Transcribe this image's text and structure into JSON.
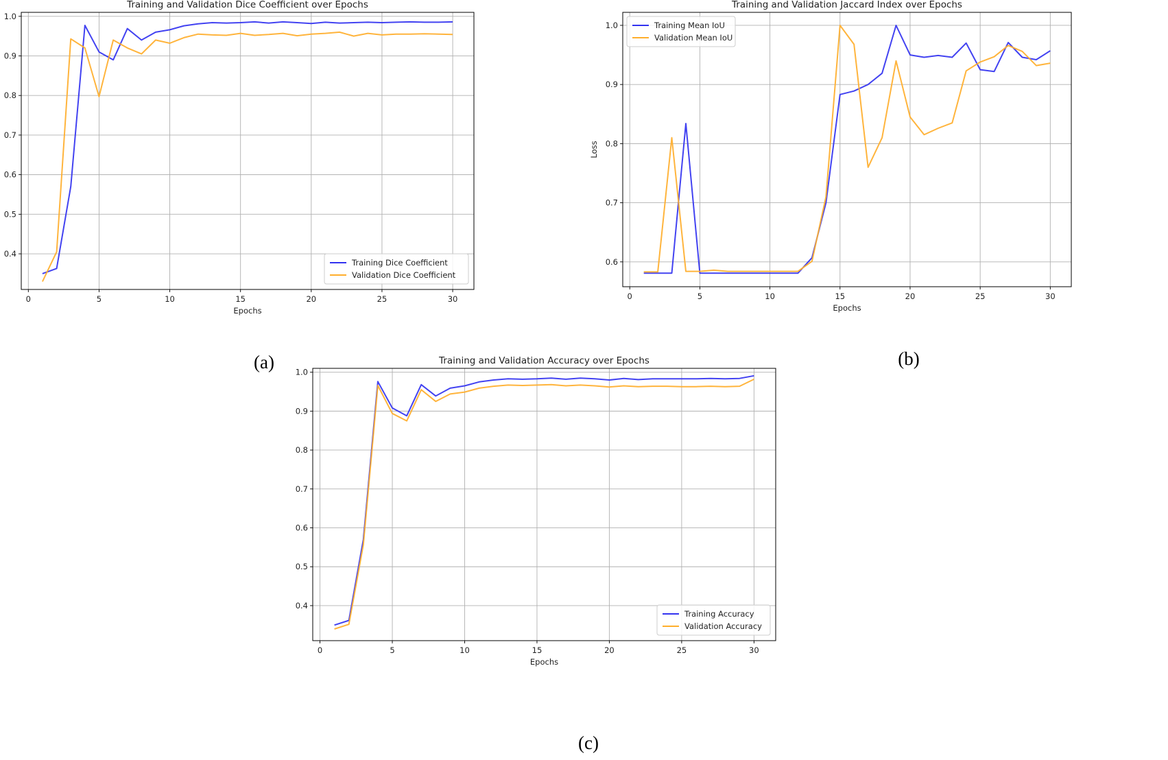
{
  "captions": [
    "(a)",
    "(b)",
    "(c)"
  ],
  "colors": {
    "training": "#3232f0",
    "validation": "#ffae2b",
    "grid": "#b0b0b0",
    "axis": "#000000"
  },
  "chart_data": [
    {
      "type": "line",
      "title": "Training and Validation Dice Coefficient over Epochs",
      "xlabel": "Epochs",
      "ylabel": "",
      "xlim": [
        -0.5,
        31.5
      ],
      "ylim": [
        0.31,
        1.01
      ],
      "xticks": [
        0,
        5,
        10,
        15,
        20,
        25,
        30
      ],
      "yticks": [
        0.3,
        0.4,
        0.5,
        0.6,
        0.7,
        0.8,
        0.9,
        1.0
      ],
      "grid": true,
      "legend_position": "lower-right",
      "x": [
        1,
        2,
        3,
        4,
        5,
        6,
        7,
        8,
        9,
        10,
        11,
        12,
        13,
        14,
        15,
        16,
        17,
        18,
        19,
        20,
        21,
        22,
        23,
        24,
        25,
        26,
        27,
        28,
        29,
        30
      ],
      "series": [
        {
          "name": "Training Dice Coefficient",
          "color": "#3232f0",
          "values": [
            0.35,
            0.363,
            0.57,
            0.977,
            0.91,
            0.89,
            0.969,
            0.94,
            0.96,
            0.966,
            0.976,
            0.981,
            0.984,
            0.983,
            0.984,
            0.986,
            0.983,
            0.986,
            0.984,
            0.982,
            0.985,
            0.983,
            0.984,
            0.985,
            0.984,
            0.985,
            0.986,
            0.985,
            0.985,
            0.986
          ]
        },
        {
          "name": "Validation Dice Coefficient",
          "color": "#ffae2b",
          "values": [
            0.33,
            0.405,
            0.943,
            0.92,
            0.797,
            0.94,
            0.92,
            0.905,
            0.94,
            0.932,
            0.946,
            0.955,
            0.953,
            0.952,
            0.957,
            0.952,
            0.954,
            0.957,
            0.951,
            0.955,
            0.957,
            0.96,
            0.95,
            0.957,
            0.953,
            0.955,
            0.955,
            0.956,
            0.955,
            0.954
          ]
        }
      ]
    },
    {
      "type": "line",
      "title": "Training and Validation Jaccard Index over Epochs",
      "xlabel": "Epochs",
      "ylabel": "Loss",
      "xlim": [
        -0.5,
        31.5
      ],
      "ylim": [
        0.558,
        1.022
      ],
      "xticks": [
        0,
        5,
        10,
        15,
        20,
        25,
        30
      ],
      "yticks": [
        0.6,
        0.7,
        0.8,
        0.9,
        1.0
      ],
      "grid": true,
      "legend_position": "upper-left",
      "x": [
        1,
        2,
        3,
        4,
        5,
        6,
        7,
        8,
        9,
        10,
        11,
        12,
        13,
        14,
        15,
        16,
        17,
        18,
        19,
        20,
        21,
        22,
        23,
        24,
        25,
        26,
        27,
        28,
        29,
        30
      ],
      "series": [
        {
          "name": "Training Mean IoU",
          "color": "#3232f0",
          "values": [
            0.581,
            0.581,
            0.581,
            0.834,
            0.581,
            0.581,
            0.581,
            0.581,
            0.581,
            0.581,
            0.581,
            0.581,
            0.607,
            0.7,
            0.883,
            0.889,
            0.9,
            0.919,
            1.0,
            0.95,
            0.946,
            0.949,
            0.946,
            0.97,
            0.925,
            0.922,
            0.971,
            0.946,
            0.942,
            0.957
          ]
        },
        {
          "name": "Validation Mean IoU",
          "color": "#ffae2b",
          "values": [
            0.583,
            0.583,
            0.81,
            0.584,
            0.584,
            0.586,
            0.584,
            0.584,
            0.584,
            0.584,
            0.584,
            0.584,
            0.601,
            0.71,
            1.0,
            0.968,
            0.76,
            0.81,
            0.94,
            0.845,
            0.815,
            0.826,
            0.835,
            0.923,
            0.938,
            0.947,
            0.966,
            0.956,
            0.932,
            0.936
          ]
        }
      ]
    },
    {
      "type": "line",
      "title": "Training and Validation Accuracy over Epochs",
      "xlabel": "Epochs",
      "ylabel": "",
      "xlim": [
        -0.5,
        31.5
      ],
      "ylim": [
        0.31,
        1.01
      ],
      "xticks": [
        0,
        5,
        10,
        15,
        20,
        25,
        30
      ],
      "yticks": [
        0.4,
        0.5,
        0.6,
        0.7,
        0.8,
        0.9,
        1.0
      ],
      "grid": true,
      "legend_position": "lower-right",
      "x": [
        1,
        2,
        3,
        4,
        5,
        6,
        7,
        8,
        9,
        10,
        11,
        12,
        13,
        14,
        15,
        16,
        17,
        18,
        19,
        20,
        21,
        22,
        23,
        24,
        25,
        26,
        27,
        28,
        29,
        30
      ],
      "series": [
        {
          "name": "Training Accuracy",
          "color": "#3232f0",
          "values": [
            0.35,
            0.362,
            0.57,
            0.976,
            0.908,
            0.888,
            0.968,
            0.939,
            0.959,
            0.965,
            0.975,
            0.98,
            0.983,
            0.982,
            0.983,
            0.985,
            0.982,
            0.985,
            0.983,
            0.98,
            0.984,
            0.981,
            0.983,
            0.983,
            0.983,
            0.983,
            0.984,
            0.983,
            0.984,
            0.991
          ]
        },
        {
          "name": "Validation Accuracy",
          "color": "#ffae2b",
          "values": [
            0.34,
            0.352,
            0.557,
            0.966,
            0.894,
            0.875,
            0.955,
            0.925,
            0.944,
            0.949,
            0.959,
            0.964,
            0.967,
            0.966,
            0.967,
            0.968,
            0.965,
            0.967,
            0.965,
            0.962,
            0.965,
            0.963,
            0.964,
            0.964,
            0.963,
            0.963,
            0.964,
            0.963,
            0.964,
            0.982
          ]
        }
      ]
    }
  ]
}
